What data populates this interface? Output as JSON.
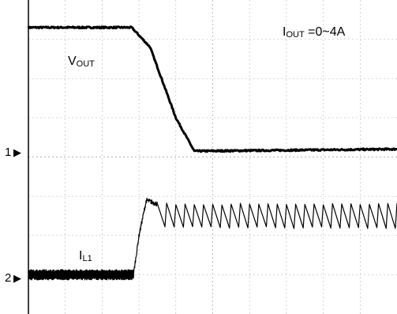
{
  "chart_data": {
    "type": "line",
    "annotations": {
      "load": {
        "prefix": "I",
        "sub": "OUT",
        "suffix": " =0~4A"
      },
      "vout": {
        "prefix": "V",
        "sub": "OUT"
      },
      "il1": {
        "prefix": "I",
        "sub": "L1"
      }
    },
    "channel_markers": [
      {
        "label": "1",
        "marker": "▶"
      },
      {
        "label": "2",
        "marker": "▶"
      }
    ],
    "grid": true,
    "divisions": {
      "x": 10,
      "y": 8
    },
    "series": [
      {
        "x_div": [
          0,
          2.8,
          3.3,
          4.0,
          4.5,
          10
        ],
        "y_div": [
          7.3,
          7.3,
          6.8,
          5.0,
          4.15,
          4.2
        ]
      },
      {
        "x_div": [
          0,
          2.85,
          3.0,
          3.2,
          3.5
        ],
        "y_div": [
          1.0,
          1.0,
          2.0,
          2.9,
          2.8
        ],
        "ripple": {
          "start_div": 3.5,
          "end_div": 10,
          "peak_div": 2.8,
          "valley_div": 2.2,
          "cycles": 26
        }
      }
    ],
    "colors": {
      "trace": "#000000",
      "grid": "#b5b5b5",
      "axis": "#000000"
    }
  }
}
